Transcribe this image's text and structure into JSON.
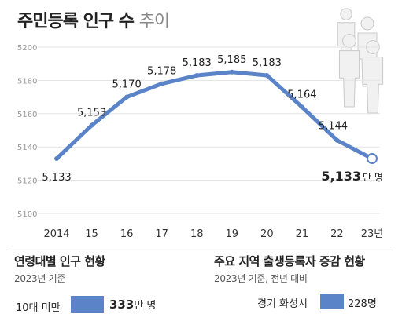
{
  "header": {
    "title_main": "주민등록 인구 수",
    "title_light": "추이"
  },
  "chart_data": {
    "type": "line",
    "title": "주민등록 인구 수 추이",
    "x": [
      "2014",
      "15",
      "16",
      "17",
      "18",
      "19",
      "20",
      "21",
      "22",
      "23년"
    ],
    "series": [
      {
        "values": [
          5133,
          5153,
          5170,
          5178,
          5183,
          5185,
          5183,
          5164,
          5144,
          5133
        ]
      }
    ],
    "point_labels": [
      "5,133",
      "5,153",
      "5,170",
      "5,178",
      "5,183",
      "5,185",
      "5,183",
      "5,164",
      "5,144",
      "5,133"
    ],
    "last_label_unit": "만 명",
    "y_ticks": [
      "5100",
      "5120",
      "5140",
      "5160",
      "5180",
      "5200"
    ],
    "ylim": [
      5100,
      5200
    ],
    "grid": true,
    "line_color": "#5b84c8"
  },
  "age_section": {
    "heading": "연령대별 인구 현황",
    "sub": "2023년 기준",
    "rows": [
      {
        "label": "10대 미만",
        "value": "333",
        "unit": "만 명"
      }
    ]
  },
  "region_section": {
    "heading": "주요 지역 출생등록자 증감 현황",
    "sub": "2023년 기준, 전년 대비",
    "rows": [
      {
        "label": "경기 화성시",
        "value": "228명"
      }
    ]
  },
  "colors": {
    "accent": "#5b84c8",
    "grid": "#e3e3e3",
    "text": "#222222"
  },
  "icon": "people-group-icon"
}
